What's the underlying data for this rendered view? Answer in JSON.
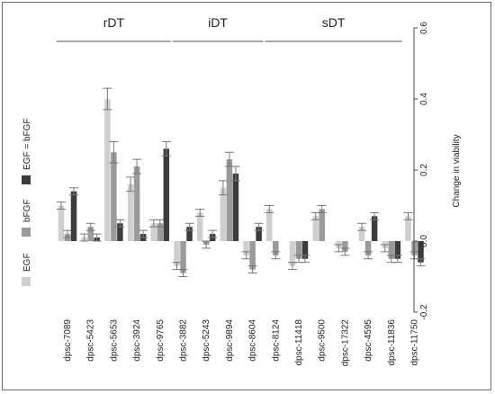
{
  "chart_data": {
    "type": "bar",
    "ylabel": "Change in viability",
    "ylim": [
      -0.2,
      0.6
    ],
    "yticks": [
      "-0.2",
      "0.0",
      "0.2",
      "0.4",
      "0.6"
    ],
    "groups": [
      {
        "label": "rDT",
        "start": 0,
        "end": 4
      },
      {
        "label": "iDT",
        "start": 5,
        "end": 8
      },
      {
        "label": "sDT",
        "start": 9,
        "end": 14
      }
    ],
    "categories": [
      "dpsc-7089",
      "dpsc-5423",
      "dpsc-5653",
      "dpsc-3924",
      "dpsc-9765",
      "dpsc-3882",
      "dpsc-5243",
      "dpsc-9894",
      "dpsc-8604",
      "dpsc-8124",
      "dpsc-11418",
      "dpsc-9500",
      "dpsc-17322",
      "dpsc-4595",
      "dpsc-11836",
      "dpsc-11750"
    ],
    "series": [
      {
        "name": "EGF",
        "color": "#cfcfcf",
        "values": [
          0.1,
          0.01,
          0.4,
          0.16,
          0.05,
          -0.07,
          0.08,
          0.15,
          -0.04,
          0.09,
          -0.07,
          0.07,
          -0.02,
          0.04,
          -0.02,
          0.07
        ],
        "errors": [
          0.01,
          0.01,
          0.03,
          0.02,
          0.01,
          0.01,
          0.01,
          0.02,
          0.01,
          0.01,
          0.01,
          0.01,
          0.01,
          0.01,
          0.01,
          0.01
        ]
      },
      {
        "name": "bFGF",
        "color": "#9a9a9a",
        "values": [
          0.02,
          0.04,
          0.25,
          0.21,
          0.05,
          -0.09,
          -0.01,
          0.23,
          -0.08,
          -0.04,
          -0.05,
          0.09,
          -0.03,
          -0.04,
          -0.05,
          -0.04
        ],
        "errors": [
          0.01,
          0.01,
          0.03,
          0.02,
          0.01,
          0.01,
          0.01,
          0.02,
          0.01,
          0.01,
          0.01,
          0.01,
          0.01,
          0.01,
          0.01,
          0.01
        ]
      },
      {
        "name": "EGF = bFGF",
        "color": "#3c3c3c",
        "values": [
          0.14,
          0.01,
          0.05,
          0.02,
          0.26,
          0.04,
          0.02,
          0.19,
          0.04,
          null,
          -0.05,
          null,
          null,
          0.07,
          -0.05,
          -0.06
        ],
        "errors": [
          0.01,
          0.01,
          0.01,
          0.01,
          0.02,
          0.01,
          0.01,
          0.02,
          0.01,
          0.0,
          0.01,
          0.0,
          0.0,
          0.01,
          0.01,
          0.01
        ]
      }
    ],
    "legend": "left",
    "grid": false
  }
}
